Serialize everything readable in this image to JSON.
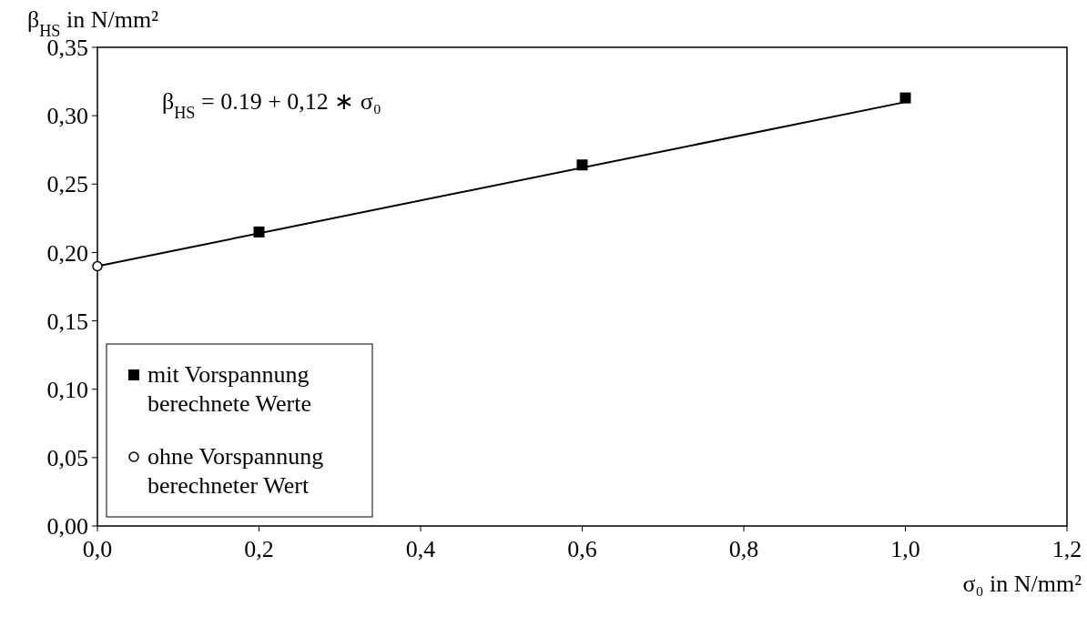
{
  "chart_data": {
    "type": "scatter",
    "ylabel": "β$_{HS}$ in N/mm²",
    "xlabel": "σ₀ in N/mm²",
    "annotations": [
      "β$_{HS}$ = 0.19 + 0,12 ∗ σ₀"
    ],
    "series": [
      {
        "type": "line",
        "color": "#000000",
        "x": [
          0,
          1.0
        ],
        "values": [
          0.19,
          0.31
        ],
        "marker": "none",
        "line_style": "solid"
      },
      {
        "name": "mit Vorspannung berechnete Werte",
        "color": "#000000",
        "x": [
          0.2,
          0.6,
          1.0
        ],
        "values": [
          0.215,
          0.264,
          0.313
        ],
        "marker": "square"
      },
      {
        "name": "ohne Vorspannung berechneter Wert",
        "color": "#000000",
        "x": [
          0
        ],
        "values": [
          0.19
        ],
        "marker": "circle"
      }
    ],
    "xlim": [
      0,
      1.2
    ],
    "ylim": [
      0,
      0.35
    ],
    "xticks": [
      {
        "value": 0,
        "label": "0,0"
      },
      {
        "value": 0.2,
        "label": "0,2"
      },
      {
        "value": 0.4,
        "label": "0,4"
      },
      {
        "value": 0.6,
        "label": "0,6"
      },
      {
        "value": 0.8,
        "label": "0,8"
      },
      {
        "value": 1.0,
        "label": "1,0"
      },
      {
        "value": 1.2,
        "label": "1,2"
      }
    ],
    "yticks": [
      {
        "value": 0,
        "label": "0,00"
      },
      {
        "value": 0.05,
        "label": "0,05"
      },
      {
        "value": 0.1,
        "label": "0,10"
      },
      {
        "value": 0.15,
        "label": "0,15"
      },
      {
        "value": 0.2,
        "label": "0,20"
      },
      {
        "value": 0.25,
        "label": "0,25"
      },
      {
        "value": 0.3,
        "label": "0,30"
      },
      {
        "value": 0.35,
        "label": "0,35"
      }
    ],
    "grid": false,
    "legend": "bottom left"
  }
}
